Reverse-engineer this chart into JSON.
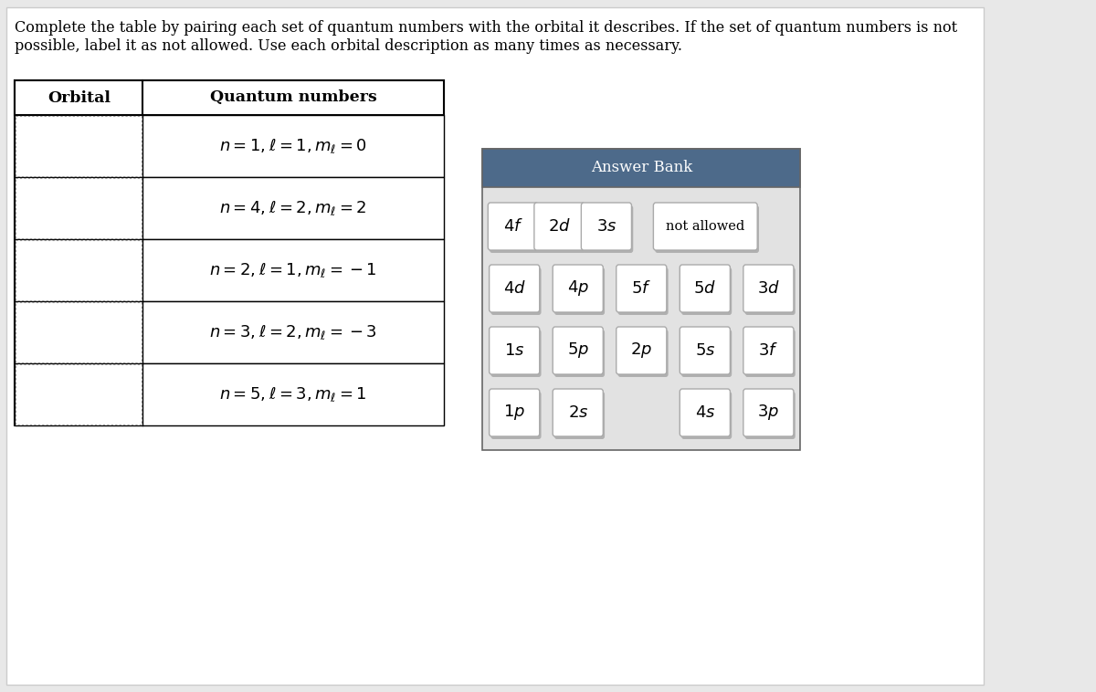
{
  "title_line1": "Complete the table by pairing each set of quantum numbers with the orbital it describes. If the set of quantum numbers is not",
  "title_line2": "possible, label it as not allowed. Use each orbital description as many times as necessary.",
  "table_col1_header": "Orbital",
  "table_col2_header": "Quantum numbers",
  "table_rows": [
    "n = 1, ℓ = 1, mℓ = 0",
    "n = 4, ℓ = 2, mℓ = 2",
    "n = 2, ℓ = 1, mℓ = −1",
    "n = 3, ℓ = 2, mℓ = −3",
    "n = 5, ℓ = 3, mℓ = 1"
  ],
  "table_rows_math": [
    "$n = 1, \\ell = 1, m_\\ell = 0$",
    "$n = 4, \\ell = 2, m_\\ell = 2$",
    "$n = 2, \\ell = 1, m_\\ell = -1$",
    "$n = 3, \\ell = 2, m_\\ell = -3$",
    "$n = 5, \\ell = 3, m_\\ell = 1$"
  ],
  "answer_bank_title": "Answer Bank",
  "answer_bank_header_color": "#4d6a8a",
  "answer_bank_bg": "#e2e2e2",
  "answer_bank_rows": [
    [
      "4f",
      "2d",
      "3s",
      "not allowed"
    ],
    [
      "4d",
      "4p",
      "5f",
      "5d",
      "3d"
    ],
    [
      "1s",
      "5p",
      "2p",
      "5s",
      "3f"
    ],
    [
      "1p",
      "2s",
      "4s",
      "3p"
    ]
  ],
  "bg_color": "#e8e8e8",
  "page_bg": "#ffffff"
}
